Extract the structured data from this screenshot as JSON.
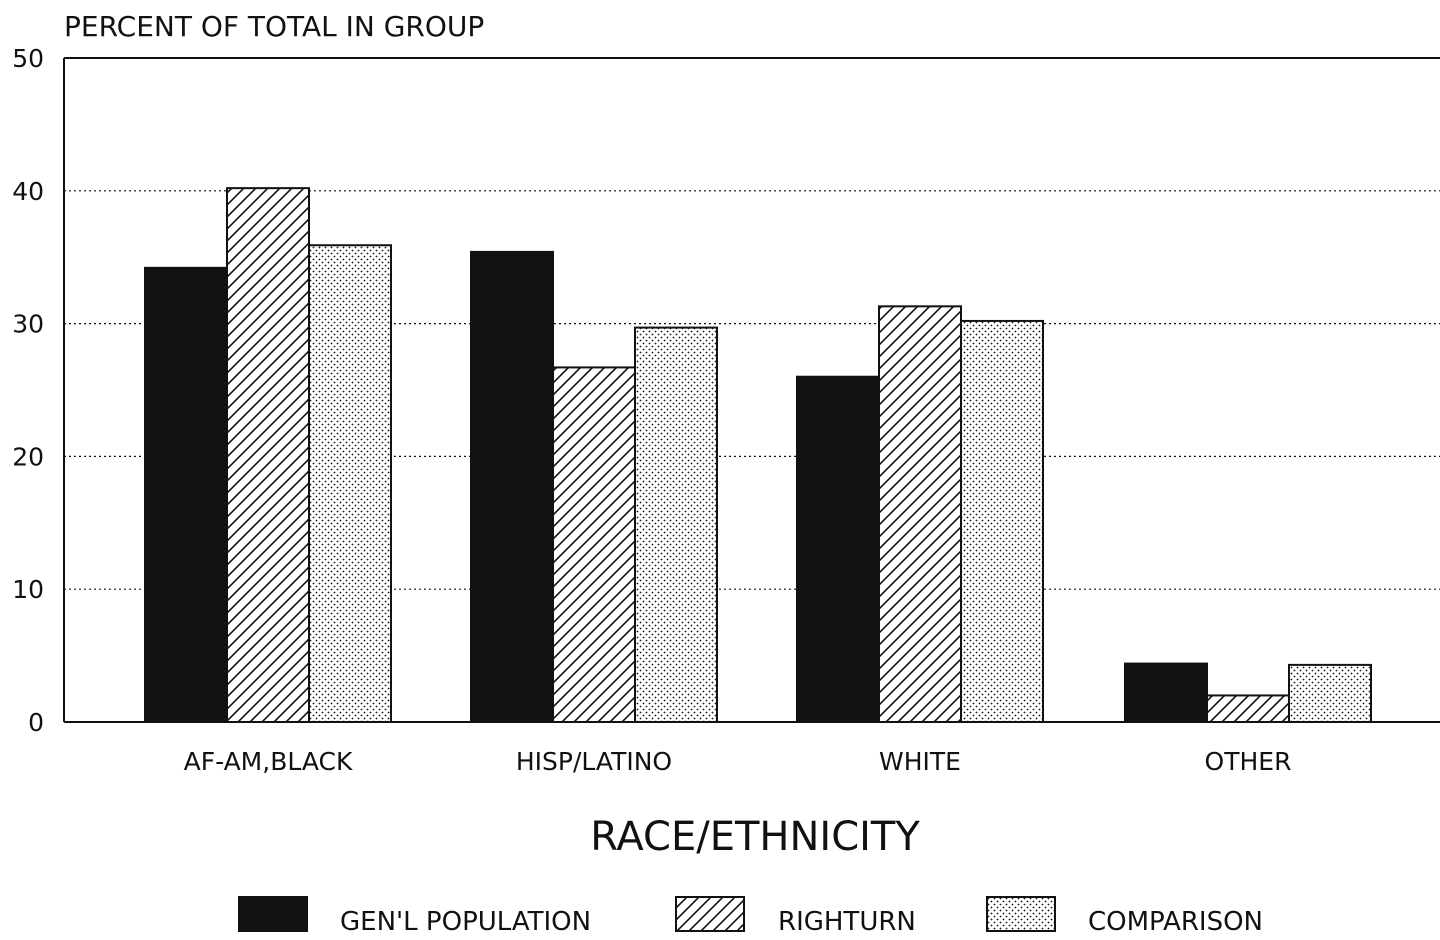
{
  "chart_data": {
    "type": "bar",
    "ylabel": "PERCENT OF TOTAL IN GROUP",
    "xlabel": "RACE/ETHNICITY",
    "categories": [
      "AF-AM,BLACK",
      "HISP/LATINO",
      "WHITE",
      "OTHER"
    ],
    "series": [
      {
        "name": "GEN'L POPULATION",
        "pattern": "solid",
        "values": [
          34.2,
          35.4,
          26.0,
          4.4
        ]
      },
      {
        "name": "RIGHTURN",
        "pattern": "diagonal-hatch",
        "values": [
          40.2,
          26.7,
          31.3,
          2.0
        ]
      },
      {
        "name": "COMPARISON",
        "pattern": "dotted",
        "values": [
          35.9,
          29.7,
          30.2,
          4.3
        ]
      }
    ],
    "ylim": [
      0,
      50
    ],
    "yticks": [
      0,
      10,
      20,
      30,
      40,
      50
    ],
    "grid": "dotted horizontal",
    "legend_position": "bottom",
    "colors": {
      "ink": "#111111",
      "background": "#ffffff"
    }
  }
}
